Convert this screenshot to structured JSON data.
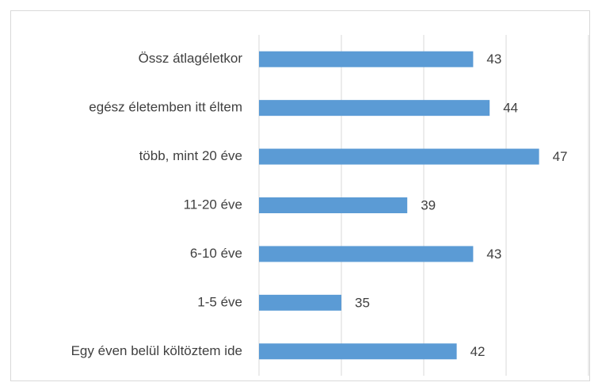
{
  "chart_data": {
    "type": "barh",
    "categories": [
      "Össz átlagéletkor",
      "egész életemben itt éltem",
      "több, mint 20 éve",
      "11-20 éve",
      "6-10 éve",
      "1-5 éve",
      "Egy éven belül költöztem ide"
    ],
    "values": [
      43,
      44,
      47,
      39,
      43,
      35,
      42
    ],
    "color": "#5b9bd5",
    "xlim": [
      30,
      50
    ],
    "xticks": [
      30,
      35,
      40,
      45,
      50
    ],
    "grid": true
  }
}
